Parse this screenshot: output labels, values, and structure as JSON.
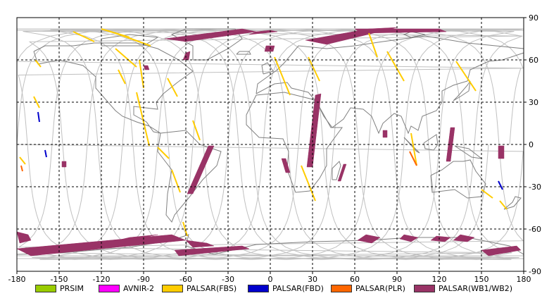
{
  "chart_data": {
    "type": "map",
    "x_ticks": [
      -180,
      -150,
      -120,
      -90,
      -60,
      -30,
      0,
      30,
      60,
      90,
      120,
      150,
      180
    ],
    "y_ticks": [
      90,
      60,
      30,
      0,
      -30,
      -60,
      -90
    ],
    "xlim": [
      -180,
      180
    ],
    "ylim": [
      -90,
      90
    ],
    "grid": true,
    "legend": [
      {
        "label": "PRSIM",
        "color": "#99cc00"
      },
      {
        "label": "AVNIR-2",
        "color": "#ff00ff"
      },
      {
        "label": "PALSAR(FBS)",
        "color": "#ffcc00"
      },
      {
        "label": "PALSAR(FBD)",
        "color": "#0000cc"
      },
      {
        "label": "PALSAR(PLR)",
        "color": "#ff6600"
      },
      {
        "label": "PALSAR(WB1/WB2)",
        "color": "#993366"
      }
    ],
    "series_color": {
      "fbs": "#ffcc00",
      "fbd": "#0000cc",
      "plr": "#ff6600",
      "wb": "#993366",
      "orbit": "#c0c0c0",
      "coast": "#808080"
    }
  }
}
